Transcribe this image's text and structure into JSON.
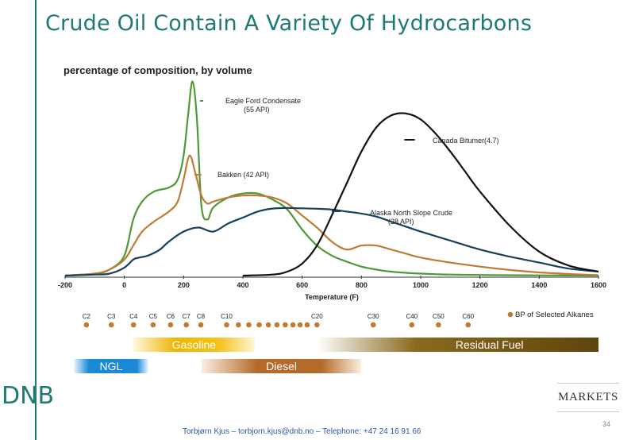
{
  "title": "Crude Oil Contain A Variety Of Hydrocarbons",
  "logo": "DNB",
  "markets": "MARKETS",
  "page_number": "34",
  "footer": "Torbjørn Kjus – torbjorn.kjus@dnb.no – Telephone: +47 24 16 91 66",
  "chart_data": {
    "type": "line",
    "title": "percentage of composition, by volume",
    "xlabel": "Temperature (F)",
    "ylabel": "",
    "xlim": [
      -200,
      1600
    ],
    "ylim": [
      0,
      100
    ],
    "x_ticks": [
      -200,
      0,
      200,
      400,
      600,
      800,
      1000,
      1200,
      1400,
      1600
    ],
    "x_tick_labels": [
      "-200",
      "0",
      "200",
      "400",
      "600",
      "800",
      "1000",
      "1200",
      "1400",
      "1600"
    ],
    "series": [
      {
        "name": "Eagle Ford Condensate\n(55 API)",
        "color": "#4e9a35",
        "x": [
          -200,
          -100,
          -50,
          0,
          30,
          60,
          100,
          150,
          180,
          200,
          215,
          230,
          245,
          260,
          280,
          300,
          350,
          400,
          450,
          500,
          550,
          600,
          650,
          700,
          750,
          800,
          850,
          900,
          950,
          1000,
          1050,
          1100,
          1200,
          1300,
          1400,
          1500,
          1600
        ],
        "y": [
          0,
          1,
          3,
          10,
          28,
          37,
          42,
          44,
          48,
          60,
          80,
          97,
          78,
          35,
          28,
          34,
          39,
          41,
          41,
          38,
          33,
          23,
          15,
          10,
          7,
          4.5,
          3,
          2,
          1.4,
          1,
          0.7,
          0.5,
          0.3,
          0.2,
          0.1,
          0.05,
          0
        ]
      },
      {
        "name": "Bakken (42 API)",
        "color": "#c07a34",
        "x": [
          -200,
          -100,
          -50,
          0,
          30,
          60,
          100,
          150,
          180,
          200,
          220,
          240,
          260,
          280,
          300,
          350,
          400,
          450,
          500,
          550,
          600,
          650,
          700,
          750,
          800,
          850,
          900,
          950,
          1000,
          1100,
          1200,
          1300,
          1400,
          1500,
          1600
        ],
        "y": [
          0,
          1,
          3,
          8,
          15,
          22,
          27,
          32,
          37,
          48,
          60,
          51,
          40,
          36,
          37,
          39,
          40,
          40,
          39,
          36,
          30,
          24,
          17,
          13,
          15,
          15,
          13,
          11,
          9,
          6.5,
          4.5,
          2.8,
          1.6,
          0.8,
          0.2
        ]
      },
      {
        "name": "Alaska North Slope Crude\n(28 API)",
        "color": "#16405c",
        "x": [
          -200,
          -100,
          -50,
          0,
          30,
          50,
          80,
          120,
          150,
          200,
          250,
          300,
          350,
          400,
          450,
          500,
          550,
          600,
          650,
          700,
          750,
          800,
          850,
          900,
          950,
          1000,
          1100,
          1200,
          1300,
          1400,
          1500,
          1600
        ],
        "y": [
          0,
          0.5,
          1,
          4,
          8,
          9,
          10,
          13,
          17,
          22,
          24,
          22,
          26,
          29,
          32,
          33.5,
          33.8,
          33.6,
          33.4,
          33,
          32,
          31,
          29.5,
          27,
          24.5,
          22,
          17.5,
          13,
          9.5,
          6.5,
          3.5,
          2
        ]
      },
      {
        "name": "Canada Bitumer(4.7)",
        "color": "#111111",
        "x": [
          400,
          500,
          550,
          600,
          650,
          700,
          750,
          800,
          850,
          900,
          950,
          1000,
          1050,
          1100,
          1150,
          1200,
          1300,
          1400,
          1500,
          1600
        ],
        "y": [
          0,
          0.5,
          2,
          6,
          15,
          30,
          46,
          62,
          74,
          80,
          81,
          78,
          71,
          62,
          52,
          42,
          25,
          12,
          5,
          2
        ]
      }
    ],
    "alkanes": {
      "legend": "BP of Selected Alkanes",
      "labels": [
        "C2",
        "C3",
        "C4",
        "C5",
        "C6",
        "C7",
        "C8",
        "C10",
        "",
        "",
        "",
        "",
        "",
        "",
        "",
        "",
        "",
        "C20",
        "C30",
        "C40",
        "C50",
        "C60"
      ],
      "bp_f": [
        -128,
        -44,
        31,
        97,
        156,
        209,
        258,
        345,
        385,
        420,
        455,
        486,
        515,
        543,
        569,
        593,
        617,
        650,
        840,
        970,
        1060,
        1160
      ],
      "color": "#c07a34"
    },
    "ranges": [
      {
        "label": "Gasoline",
        "start": 30,
        "end": 440,
        "color": "#f0b400"
      },
      {
        "label": "Residual Fuel",
        "start": 650,
        "end": 1600,
        "color": "#6b4f10"
      },
      {
        "label": "NGL",
        "start": -170,
        "end": 80,
        "color": "#1a8ad6"
      },
      {
        "label": "Diesel",
        "start": 260,
        "end": 800,
        "color": "#b46a28"
      }
    ]
  }
}
